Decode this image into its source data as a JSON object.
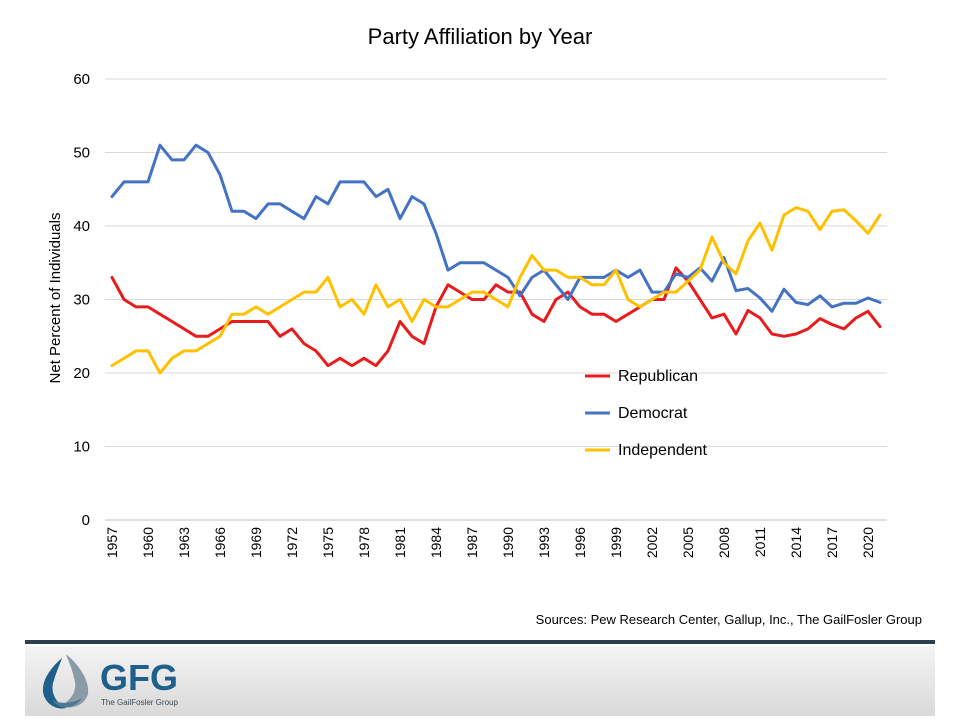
{
  "chart_data": {
    "type": "line",
    "title": "Party Affiliation by Year",
    "xlabel": "",
    "ylabel": "Net Percent of Individuals",
    "ylim": [
      0,
      60
    ],
    "yticks": [
      0,
      10,
      20,
      30,
      40,
      50,
      60
    ],
    "xlim": [
      1957,
      2021
    ],
    "xticks": [
      "1957",
      "1960",
      "1963",
      "1966",
      "1969",
      "1972",
      "1975",
      "1978",
      "1981",
      "1984",
      "1987",
      "1990",
      "1993",
      "1996",
      "1999",
      "2002",
      "2005",
      "2008",
      "2011",
      "2014",
      "2017",
      "2020"
    ],
    "grid": "horizontal",
    "legend": "inside-lower-right",
    "x": [
      1957,
      1958,
      1959,
      1960,
      1961,
      1962,
      1963,
      1964,
      1965,
      1966,
      1967,
      1968,
      1969,
      1970,
      1971,
      1972,
      1973,
      1974,
      1975,
      1976,
      1977,
      1978,
      1979,
      1980,
      1981,
      1982,
      1983,
      1984,
      1985,
      1986,
      1987,
      1988,
      1989,
      1990,
      1991,
      1992,
      1993,
      1994,
      1995,
      1996,
      1997,
      1998,
      1999,
      2000,
      2001,
      2002,
      2003,
      2004,
      2005,
      2006,
      2007,
      2008,
      2009,
      2010,
      2011,
      2012,
      2013,
      2014,
      2015,
      2016,
      2017,
      2018,
      2019,
      2020,
      2021
    ],
    "series": [
      {
        "name": "Republican",
        "color": "#e81c1c",
        "values": [
          33,
          30,
          29,
          29,
          28,
          27,
          26,
          25,
          25,
          26,
          27,
          27,
          27,
          27,
          25,
          26,
          24,
          23,
          21,
          22,
          21,
          22,
          21,
          23,
          27,
          25,
          24,
          29,
          32,
          31,
          30,
          30,
          32,
          31,
          31,
          28,
          27,
          30,
          31,
          29,
          28,
          28,
          27,
          28,
          29,
          30,
          30,
          34.3,
          32.5,
          30,
          27.5,
          28,
          25.3,
          28.5,
          27.5,
          25.3,
          25,
          25.3,
          26,
          27.4,
          26.6,
          26,
          27.5,
          28.4,
          26.3
        ]
      },
      {
        "name": "Democrat",
        "color": "#4472c4",
        "values": [
          44,
          46,
          46,
          46,
          51,
          49,
          49,
          51,
          50,
          47,
          42,
          42,
          41,
          43,
          43,
          42,
          41,
          44,
          43,
          46,
          46,
          46,
          44,
          45,
          41,
          44,
          43,
          39,
          34,
          35,
          35,
          35,
          34,
          33,
          30.5,
          33,
          34,
          32,
          30,
          33,
          33,
          33,
          34,
          33,
          34,
          31,
          31,
          33.5,
          33,
          34.3,
          32.5,
          35.7,
          31.2,
          31.5,
          30.2,
          28.4,
          31.4,
          29.6,
          29.3,
          30.5,
          29,
          29.5,
          29.5,
          30.2,
          29.6
        ]
      },
      {
        "name": "Independent",
        "color": "#ffc000",
        "values": [
          21,
          22,
          23,
          23,
          20,
          22,
          23,
          23,
          24,
          25,
          28,
          28,
          29,
          28,
          29,
          30,
          31,
          31,
          33,
          29,
          30,
          28,
          32,
          29,
          30,
          27,
          30,
          29,
          29,
          30,
          31,
          31,
          30,
          29,
          33,
          36,
          34,
          34,
          33,
          33,
          32,
          32,
          34,
          30,
          29,
          30,
          31,
          31,
          32.5,
          34,
          38.5,
          35,
          33.5,
          38,
          40.4,
          36.7,
          41.5,
          42.5,
          42,
          39.5,
          42,
          42.2,
          40.7,
          39,
          41.5
        ]
      }
    ]
  },
  "footer": {
    "sources": "Sources:  Pew Research Center,  Gallup, Inc., The GailFosler Group",
    "logo_text": "GFG",
    "logo_subtext": "The GailFosler Group"
  }
}
